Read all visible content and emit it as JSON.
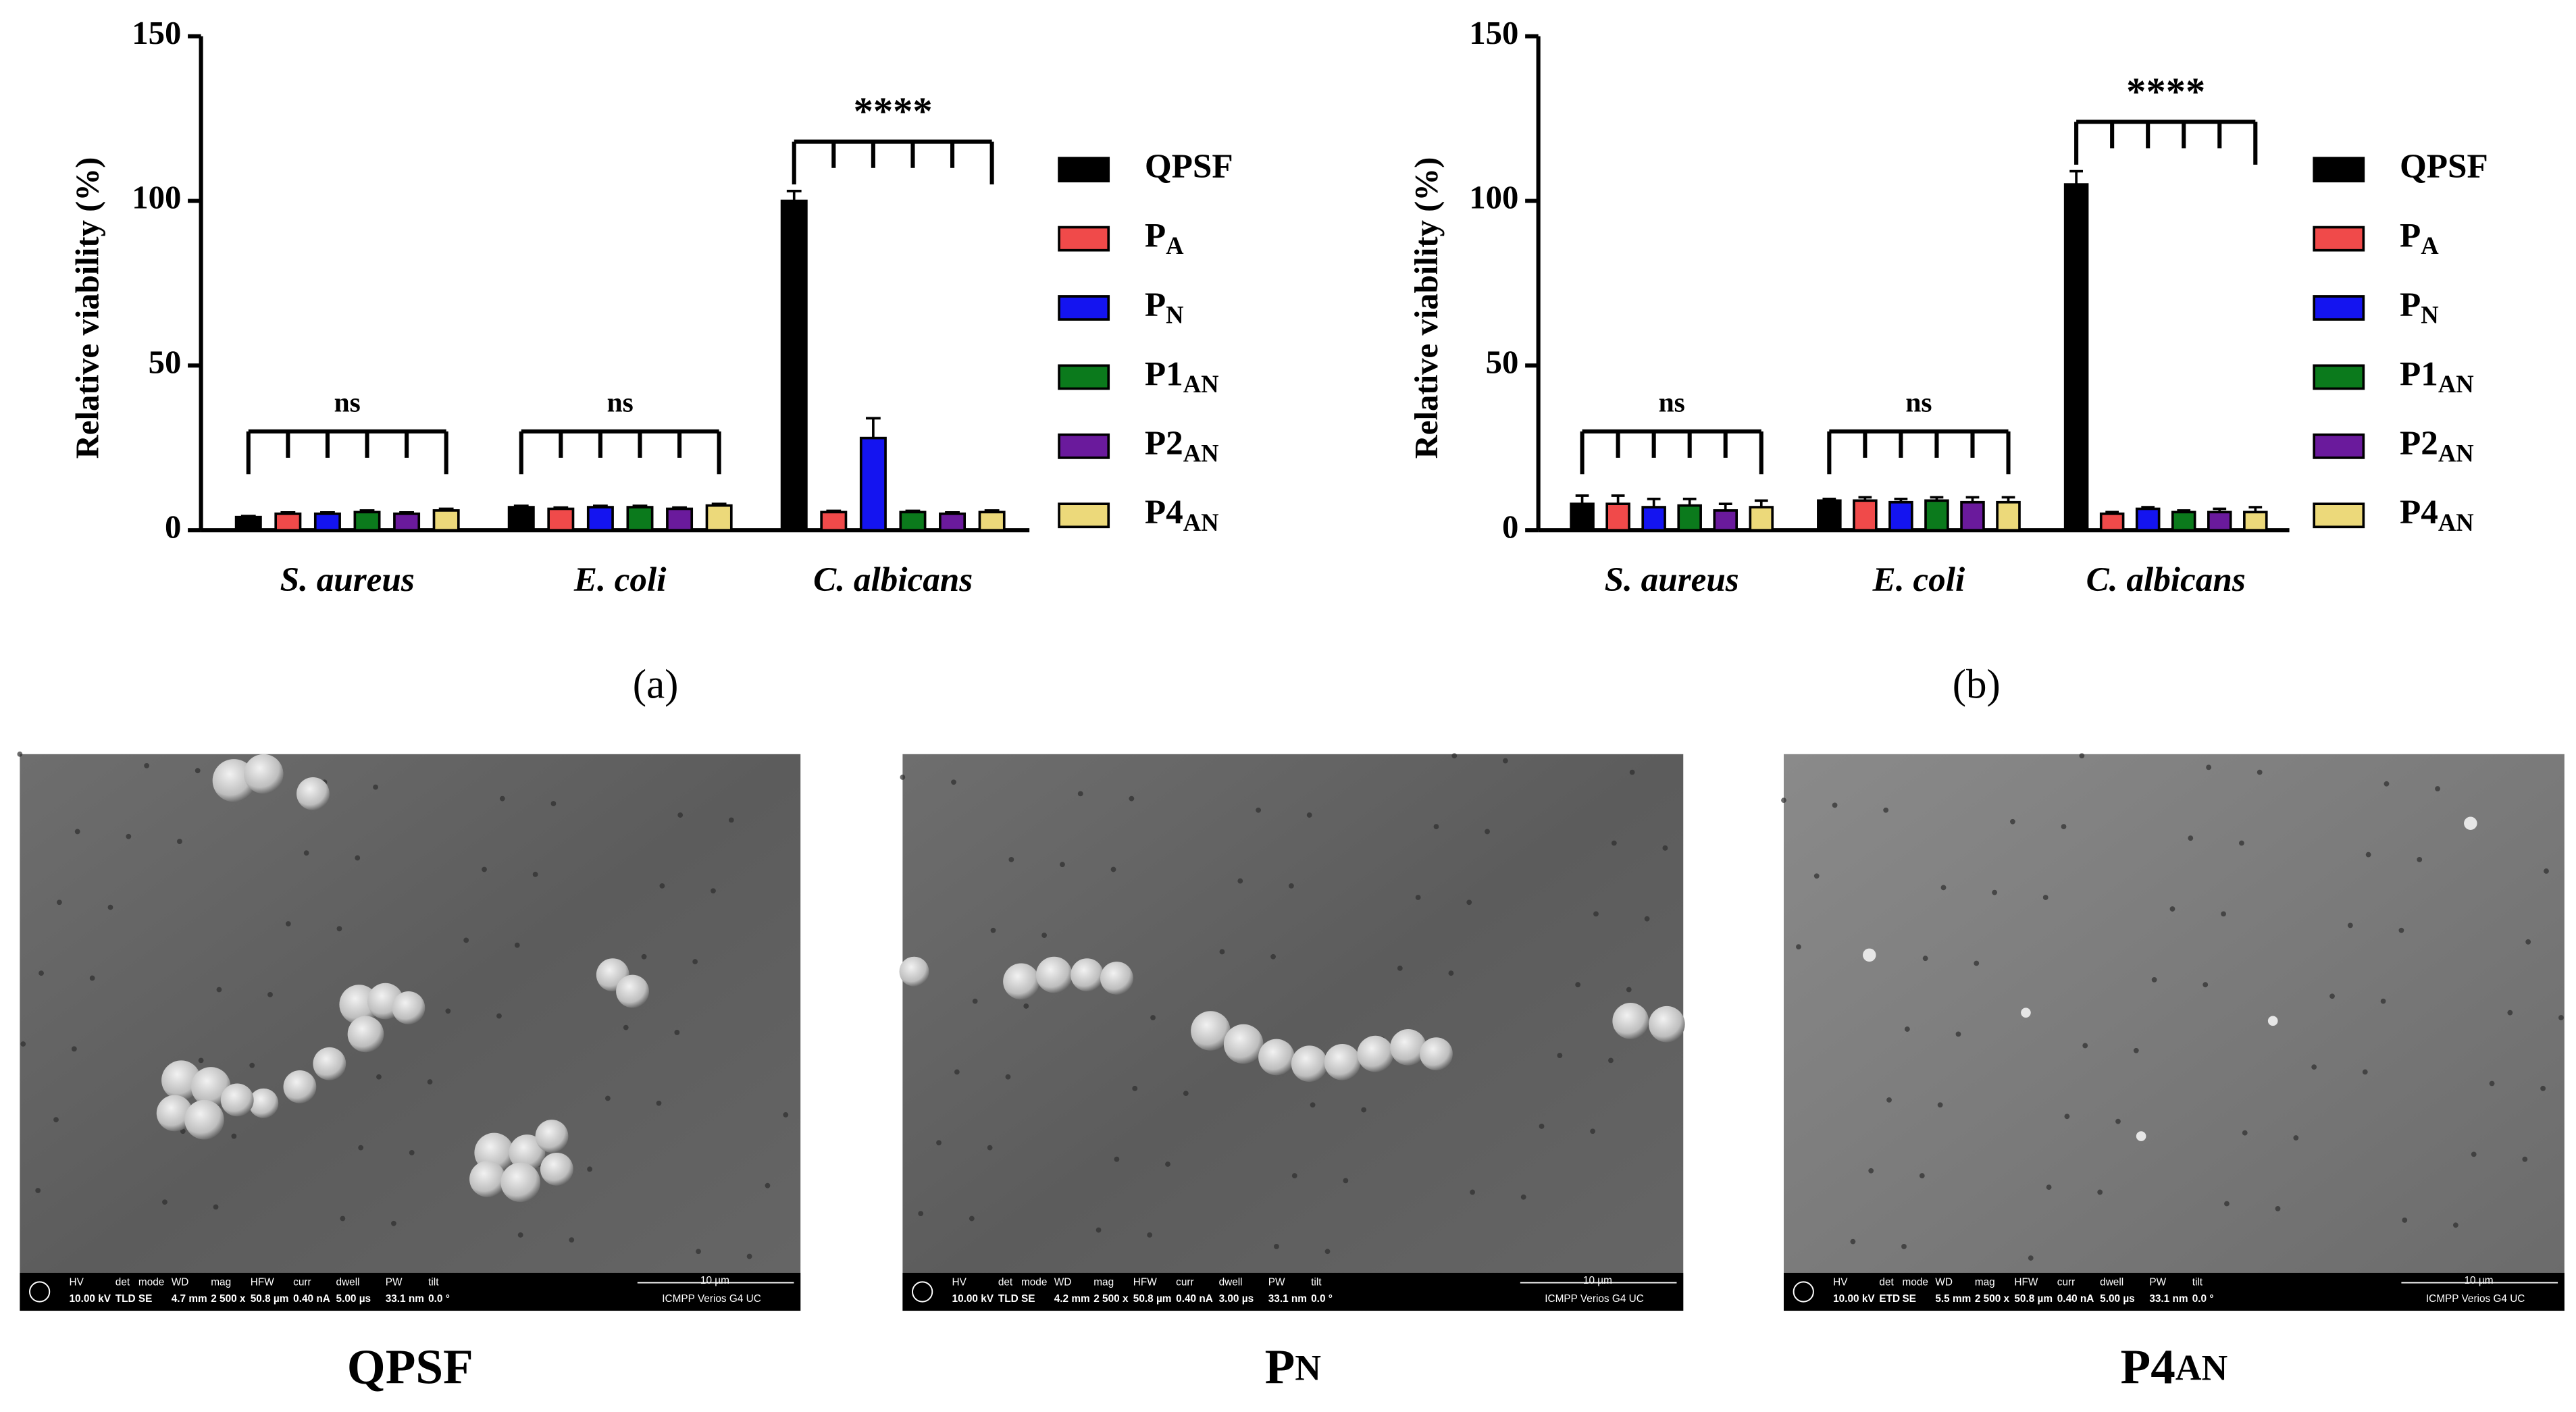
{
  "chart_data": [
    {
      "type": "bar",
      "caption": "(a)",
      "y_label": "Relative viability (%)",
      "categories": [
        "S. aureus",
        "E. coli",
        "C. albicans"
      ],
      "annotations": [
        "ns",
        "ns",
        "****"
      ],
      "ylim": [
        0,
        150
      ],
      "yticks": [
        0,
        50,
        100,
        150
      ],
      "legend": "right",
      "series": [
        {
          "name": "QPSF",
          "color": "#000000",
          "values": [
            4,
            7,
            100
          ],
          "errors": [
            0.3,
            0.4,
            3
          ]
        },
        {
          "name": "P",
          "subscript": "A",
          "color": "#f04a4a",
          "values": [
            5,
            6.5,
            5.5
          ],
          "errors": [
            0.4,
            0.4,
            0.4
          ]
        },
        {
          "name": "P",
          "subscript": "N",
          "color": "#1414f0",
          "values": [
            5,
            7,
            28
          ],
          "errors": [
            0.4,
            0.4,
            6
          ]
        },
        {
          "name": "P1",
          "subscript": "AN",
          "color": "#0b7a1c",
          "values": [
            5.5,
            7,
            5.5
          ],
          "errors": [
            0.5,
            0.4,
            0.4
          ]
        },
        {
          "name": "P2",
          "subscript": "AN",
          "color": "#6a1a9c",
          "values": [
            5,
            6.5,
            5
          ],
          "errors": [
            0.4,
            0.4,
            0.4
          ]
        },
        {
          "name": "P4",
          "subscript": "AN",
          "color": "#ecd97a",
          "values": [
            6,
            7.5,
            5.5
          ],
          "errors": [
            0.5,
            0.5,
            0.5
          ]
        }
      ]
    },
    {
      "type": "bar",
      "caption": "(b)",
      "y_label": "Relative viability (%)",
      "categories": [
        "S. aureus",
        "E. coli",
        "C. albicans"
      ],
      "annotations": [
        "ns",
        "ns",
        "****"
      ],
      "ylim": [
        0,
        150
      ],
      "yticks": [
        0,
        50,
        100,
        150
      ],
      "legend": "right",
      "series": [
        {
          "name": "QPSF",
          "color": "#000000",
          "values": [
            8,
            9,
            105
          ],
          "errors": [
            2.5,
            0.5,
            4
          ]
        },
        {
          "name": "P",
          "subscript": "A",
          "color": "#f04a4a",
          "values": [
            8,
            9,
            5
          ],
          "errors": [
            2.5,
            1,
            0.5
          ]
        },
        {
          "name": "P",
          "subscript": "N",
          "color": "#1414f0",
          "values": [
            7,
            8.5,
            6.5
          ],
          "errors": [
            2.5,
            1,
            0.5
          ]
        },
        {
          "name": "P1",
          "subscript": "AN",
          "color": "#0b7a1c",
          "values": [
            7.5,
            9,
            5.5
          ],
          "errors": [
            2,
            1,
            0.5
          ]
        },
        {
          "name": "P2",
          "subscript": "AN",
          "color": "#6a1a9c",
          "values": [
            6,
            8.5,
            5.5
          ],
          "errors": [
            2,
            1.5,
            1
          ]
        },
        {
          "name": "P4",
          "subscript": "AN",
          "color": "#ecd97a",
          "values": [
            7,
            8.5,
            5.5
          ],
          "errors": [
            2,
            1.5,
            1.5
          ]
        }
      ]
    }
  ],
  "images": [
    {
      "caption": "QPSF",
      "info_labels": [
        "HV",
        "det",
        "mode",
        "WD",
        "mag",
        "HFW",
        "curr",
        "dwell",
        "PW",
        "tilt"
      ],
      "info_values": [
        "10.00 kV",
        "TLD",
        "SE",
        "4.7 mm",
        "2 500 x",
        "50.8 µm",
        "0.40 nA",
        "5.00 µs",
        "33.1 nm",
        "0.0 °"
      ],
      "scale_label": "10 µm",
      "instrument": "ICMPP Verios G4 UC"
    },
    {
      "caption": "P",
      "caption_sub": "N",
      "info_labels": [
        "HV",
        "det",
        "mode",
        "WD",
        "mag",
        "HFW",
        "curr",
        "dwell",
        "PW",
        "tilt"
      ],
      "info_values": [
        "10.00 kV",
        "TLD",
        "SE",
        "4.2 mm",
        "2 500 x",
        "50.8 µm",
        "0.40 nA",
        "3.00 µs",
        "33.1 nm",
        "0.0 °"
      ],
      "scale_label": "10 µm",
      "instrument": "ICMPP Verios G4 UC"
    },
    {
      "caption": "P4",
      "caption_sub": "AN",
      "info_labels": [
        "HV",
        "det",
        "mode",
        "WD",
        "mag",
        "HFW",
        "curr",
        "dwell",
        "PW",
        "tilt"
      ],
      "info_values": [
        "10.00 kV",
        "ETD",
        "SE",
        "5.5 mm",
        "2 500 x",
        "50.8 µm",
        "0.40 nA",
        "5.00 µs",
        "33.1 nm",
        "0.0 °"
      ],
      "scale_label": "10 µm",
      "instrument": "ICMPP Verios G4 UC"
    }
  ]
}
